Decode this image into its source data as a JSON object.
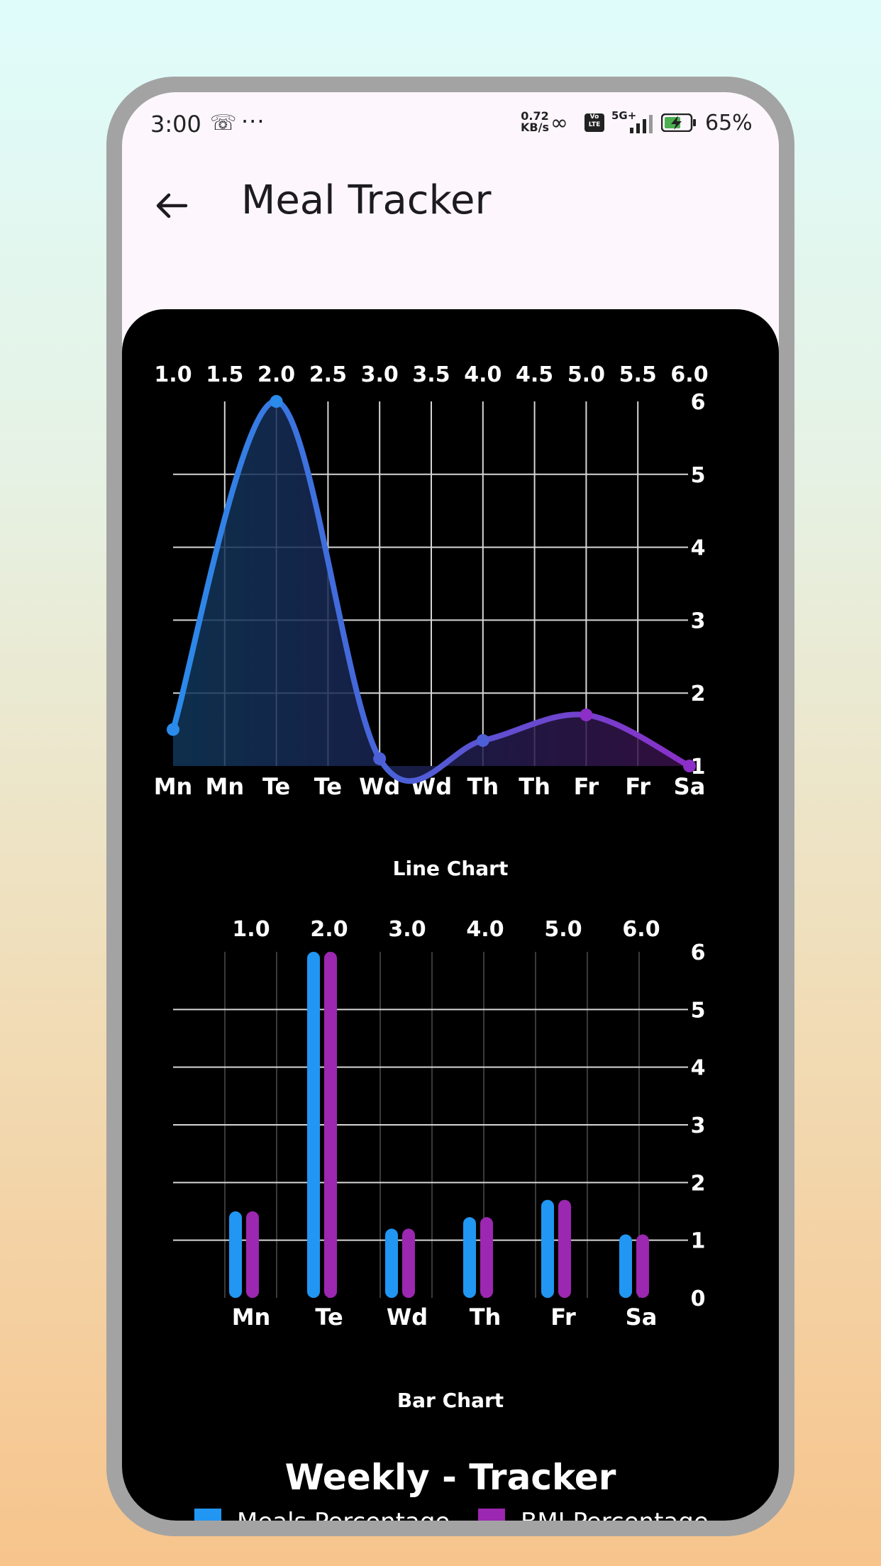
{
  "status": {
    "time": "3:00",
    "net_speed_value": "0.72",
    "net_speed_unit": "KB/s",
    "volte": "Vo LTE",
    "signal": "5G+",
    "battery": "65%"
  },
  "appbar": {
    "title": "Meal Tracker"
  },
  "colors": {
    "meals": "#2196f3",
    "bmi": "#9c27b0",
    "line_start": "#2a8bea",
    "line_mid": "#4c5fd6",
    "line_end": "#8b2fc8"
  },
  "chart_data": [
    {
      "type": "line",
      "title": "Line Chart",
      "x": [
        1.0,
        2.0,
        3.0,
        4.0,
        5.0,
        6.0
      ],
      "y": [
        1.5,
        6.0,
        1.1,
        1.35,
        1.7,
        1.0
      ],
      "top_tick_labels": [
        "1.0",
        "1.5",
        "2.0",
        "2.5",
        "3.0",
        "3.5",
        "4.0",
        "4.5",
        "5.0",
        "5.5",
        "6.0"
      ],
      "bottom_tick_labels": [
        "Mn",
        "Mn",
        "Te",
        "Te",
        "Wd",
        "Wd",
        "Th",
        "Th",
        "Fr",
        "Fr",
        "Sa"
      ],
      "xlim": [
        1.0,
        6.0
      ],
      "ylim": [
        1,
        6
      ],
      "y_ticks": [
        "1",
        "2",
        "3",
        "4",
        "5",
        "6"
      ],
      "grid": true
    },
    {
      "type": "bar",
      "title": "Bar Chart",
      "categories": [
        "Mn",
        "Te",
        "Wd",
        "Th",
        "Fr",
        "Sa"
      ],
      "top_tick_labels": [
        "1.0",
        "2.0",
        "3.0",
        "4.0",
        "5.0",
        "6.0"
      ],
      "series": [
        {
          "name": "Meals Percentage",
          "values": [
            1.5,
            6.0,
            1.2,
            1.4,
            1.7,
            1.1
          ]
        },
        {
          "name": "BMI Percentage",
          "values": [
            1.5,
            6.0,
            1.2,
            1.4,
            1.7,
            1.1
          ]
        }
      ],
      "ylim": [
        0,
        6
      ],
      "y_ticks": [
        "0",
        "1",
        "2",
        "3",
        "4",
        "5",
        "6"
      ],
      "grid": true
    }
  ],
  "main": {
    "heading": "Weekly - Tracker"
  },
  "legend": {
    "items": [
      "Meals Percentage",
      "BMI Percentage"
    ]
  }
}
